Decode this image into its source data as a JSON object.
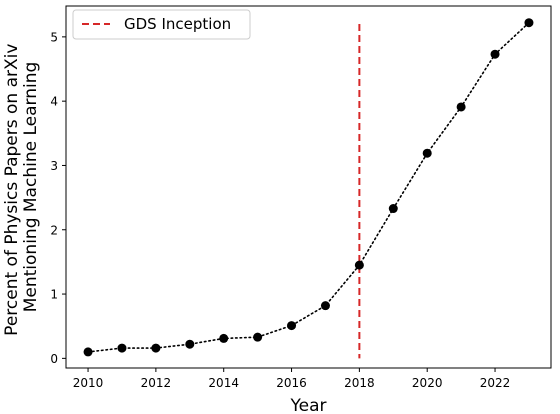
{
  "chart_data": {
    "type": "line",
    "title": "",
    "xlabel": "Year",
    "ylabel_lines": [
      "Percent of Physics Papers on arXiv",
      "Mentioning Machine Learning"
    ],
    "x": [
      2010,
      2011,
      2012,
      2013,
      2014,
      2015,
      2016,
      2017,
      2018,
      2019,
      2020,
      2021,
      2022,
      2023
    ],
    "series": [
      {
        "values": [
          0.1,
          0.16,
          0.16,
          0.22,
          0.31,
          0.33,
          0.51,
          0.82,
          1.45,
          2.33,
          3.19,
          3.91,
          4.73,
          5.22
        ],
        "color": "#000000",
        "line_style": "dotted",
        "marker": "circle"
      }
    ],
    "vline": {
      "x": 2018,
      "label": "GDS Inception",
      "color": "#d62728",
      "line_style": "dashed"
    },
    "xlim": [
      2009.35,
      2023.65
    ],
    "ylim": [
      -0.15,
      5.48
    ],
    "xticks": [
      2010,
      2012,
      2014,
      2016,
      2018,
      2020,
      2022
    ],
    "yticks": [
      0,
      1,
      2,
      3,
      4,
      5
    ],
    "grid": false,
    "legend_position": "top-left"
  }
}
